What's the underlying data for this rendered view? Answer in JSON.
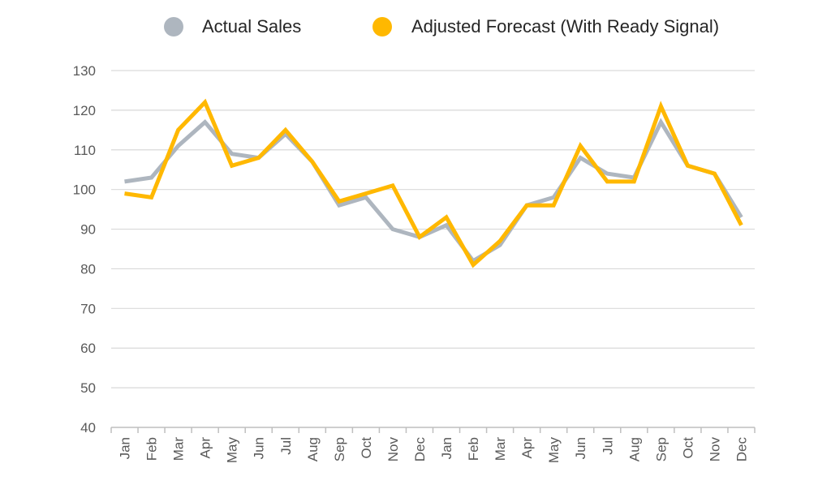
{
  "chart_data": {
    "type": "line",
    "title": "",
    "xlabel": "",
    "ylabel": "",
    "ylim": [
      40,
      130
    ],
    "yticks": [
      40,
      50,
      60,
      70,
      80,
      90,
      100,
      110,
      120,
      130
    ],
    "grid": true,
    "legend_position": "top",
    "categories": [
      "Jan",
      "Feb",
      "Mar",
      "Apr",
      "May",
      "Jun",
      "Jul",
      "Aug",
      "Sep",
      "Oct",
      "Nov",
      "Dec",
      "Jan",
      "Feb",
      "Mar",
      "Apr",
      "May",
      "Jun",
      "Jul",
      "Aug",
      "Sep",
      "Oct",
      "Nov",
      "Dec"
    ],
    "series": [
      {
        "name": "Actual Sales",
        "color": "#aeb6bf",
        "values": [
          102,
          103,
          111,
          117,
          109,
          108,
          114,
          107,
          96,
          98,
          90,
          88,
          91,
          82,
          86,
          96,
          98,
          108,
          104,
          103,
          117,
          106,
          104,
          93
        ]
      },
      {
        "name": "Adjusted Forecast (With Ready Signal)",
        "color": "#ffb800",
        "values": [
          99,
          98,
          115,
          122,
          106,
          108,
          115,
          107,
          97,
          99,
          101,
          88,
          93,
          81,
          87,
          96,
          96,
          111,
          102,
          102,
          121,
          106,
          104,
          91
        ]
      }
    ]
  }
}
